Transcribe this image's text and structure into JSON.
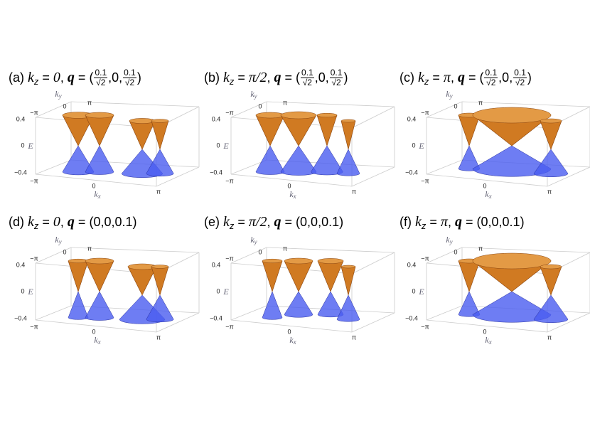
{
  "notation": {
    "k": "k",
    "z": "z",
    "q": "q",
    "eq": "=",
    "comma": ",",
    "open": "(",
    "close": ")"
  },
  "axes": {
    "ky": [
      "k",
      "y"
    ],
    "kx": [
      "k",
      "x"
    ],
    "E": "E",
    "k_ticks": [
      "−π",
      "0",
      "π"
    ],
    "e_ticks": [
      "0.4",
      "0",
      "−0.4"
    ]
  },
  "panels": [
    {
      "label": "(a)",
      "kz": "0",
      "q": [
        {
          "num": "0.1",
          "den": "√2"
        },
        "0",
        {
          "num": "0.1",
          "den": "√2"
        }
      ]
    },
    {
      "label": "(b)",
      "kz": "π/2",
      "q": [
        {
          "num": "0.1",
          "den": "√2"
        },
        "0",
        {
          "num": "0.1",
          "den": "√2"
        }
      ]
    },
    {
      "label": "(c)",
      "kz": "π",
      "q": [
        {
          "num": "0.1",
          "den": "√2"
        },
        "0",
        {
          "num": "0.1",
          "den": "√2"
        }
      ]
    },
    {
      "label": "(d)",
      "kz": "0",
      "q": [
        "0",
        "0",
        "0.1"
      ]
    },
    {
      "label": "(e)",
      "kz": "π/2",
      "q": [
        "0",
        "0",
        "0.1"
      ]
    },
    {
      "label": "(f)",
      "kz": "π",
      "q": [
        "0",
        "0",
        "0.1"
      ]
    }
  ]
}
